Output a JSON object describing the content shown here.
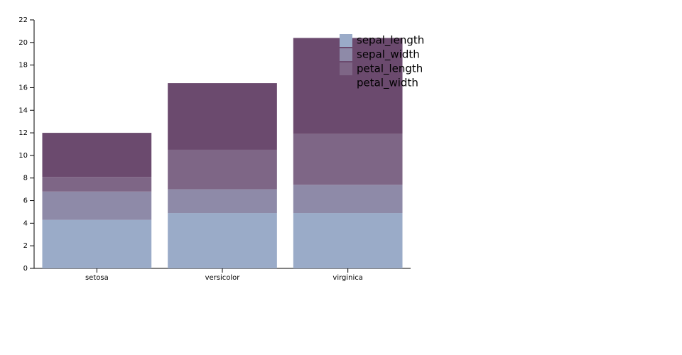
{
  "chart_data": {
    "type": "stacked_bar",
    "categories": [
      "setosa",
      "versicolor",
      "virginica"
    ],
    "series": [
      {
        "name": "sepal_length",
        "color": "#9aabc8",
        "values": [
          4.3,
          4.9,
          4.9
        ]
      },
      {
        "name": "sepal_width",
        "color": "#8e8aa8",
        "values": [
          2.5,
          2.1,
          2.5
        ]
      },
      {
        "name": "petal_length",
        "color": "#7e6686",
        "values": [
          1.3,
          3.5,
          4.5
        ]
      },
      {
        "name": "petal_width",
        "color": "#6b4a6e",
        "values": [
          3.9,
          5.9,
          8.5
        ]
      }
    ],
    "ylim": [
      0,
      22
    ],
    "yticks": [
      0,
      2,
      4,
      6,
      8,
      10,
      12,
      14,
      16,
      18,
      20,
      22
    ],
    "legend": "top-right"
  }
}
